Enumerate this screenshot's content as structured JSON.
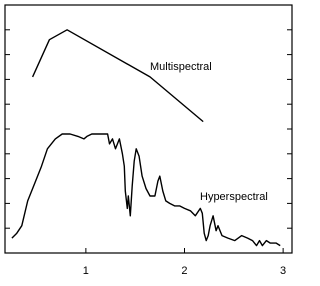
{
  "chart_data": {
    "type": "line",
    "xlim": [
      0.18,
      3.09
    ],
    "xticks": [
      1,
      2,
      3
    ],
    "ylim": [
      0,
      1
    ],
    "yticks": [
      0.1,
      0.2,
      0.3,
      0.4,
      0.5,
      0.6,
      0.7,
      0.8,
      0.9
    ],
    "grid": false,
    "series": [
      {
        "name": "Multispectral",
        "color": "#000000",
        "x": [
          0.46,
          0.63,
          0.81,
          1.65,
          2.19
        ],
        "values": [
          0.71,
          0.86,
          0.9,
          0.71,
          0.53
        ]
      },
      {
        "name": "Hyperspectral",
        "color": "#000000",
        "x": [
          0.25,
          0.3,
          0.35,
          0.41,
          0.48,
          0.55,
          0.61,
          0.69,
          0.76,
          0.84,
          0.92,
          0.98,
          1.01,
          1.06,
          1.14,
          1.22,
          1.24,
          1.27,
          1.3,
          1.34,
          1.37,
          1.39,
          1.4,
          1.42,
          1.43,
          1.45,
          1.47,
          1.49,
          1.51,
          1.54,
          1.57,
          1.61,
          1.65,
          1.7,
          1.73,
          1.75,
          1.78,
          1.81,
          1.85,
          1.9,
          1.95,
          2.0,
          2.06,
          2.11,
          2.16,
          2.18,
          2.2,
          2.22,
          2.24,
          2.26,
          2.29,
          2.32,
          2.34,
          2.38,
          2.44,
          2.51,
          2.58,
          2.64,
          2.69,
          2.73,
          2.76,
          2.79,
          2.83,
          2.87,
          2.93,
          2.97
        ],
        "values": [
          0.06,
          0.08,
          0.11,
          0.21,
          0.28,
          0.35,
          0.42,
          0.46,
          0.48,
          0.48,
          0.47,
          0.46,
          0.47,
          0.48,
          0.48,
          0.48,
          0.44,
          0.46,
          0.42,
          0.46,
          0.4,
          0.35,
          0.25,
          0.18,
          0.23,
          0.15,
          0.27,
          0.37,
          0.42,
          0.39,
          0.31,
          0.26,
          0.23,
          0.23,
          0.29,
          0.31,
          0.25,
          0.21,
          0.2,
          0.19,
          0.19,
          0.18,
          0.17,
          0.15,
          0.18,
          0.16,
          0.08,
          0.05,
          0.07,
          0.11,
          0.15,
          0.09,
          0.11,
          0.07,
          0.06,
          0.05,
          0.07,
          0.06,
          0.05,
          0.03,
          0.05,
          0.03,
          0.05,
          0.04,
          0.04,
          0.03
        ]
      }
    ]
  }
}
